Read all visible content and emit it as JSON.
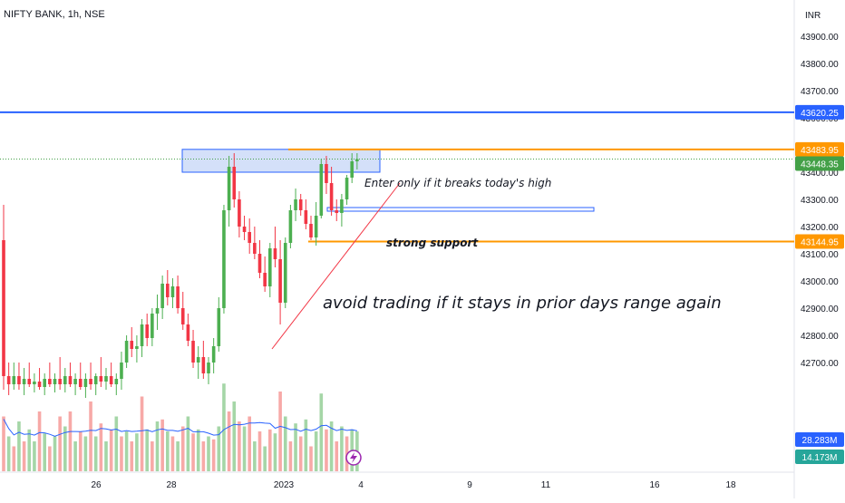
{
  "chart_data": {
    "type": "candlestick",
    "title": "NIFTY BANK, 1h, NSE",
    "currency_label": "INR",
    "y_axis_side": "right",
    "ylim": [
      42600,
      43980
    ],
    "y_ticks": [
      42700,
      42800,
      42900,
      43000,
      43100,
      43200,
      43300,
      43400,
      43500,
      43600,
      43700,
      43800,
      43900
    ],
    "y_tick_labels": [
      "42700.00",
      "42800.00",
      "42900.00",
      "43000.00",
      "43100.00",
      "43200.00",
      "43300.00",
      "43400.00",
      "43500.00",
      "43600.00",
      "43700.00",
      "43800.00",
      "43900.00"
    ],
    "x_tick_labels": [
      "26",
      "28",
      "2023",
      "4",
      "9",
      "11",
      "16",
      "18"
    ],
    "grid": false,
    "colors": {
      "up": "#4caf50",
      "down": "#f23645",
      "vol_up": "#a5d6a7",
      "vol_down": "#f7a9a7",
      "vol_ma": "#2962ff",
      "resistance": "#2962ff",
      "level": "#ff9800",
      "current": "#43a047",
      "trendline": "#f23645",
      "zone_fill": "#c5d6f7",
      "zone_border": "#2962ff"
    },
    "candles": [
      [
        43150,
        43280,
        42600,
        42650
      ],
      [
        42650,
        42700,
        42580,
        42620
      ],
      [
        42620,
        42700,
        42600,
        42650
      ],
      [
        42650,
        42700,
        42600,
        42620
      ],
      [
        42620,
        42680,
        42580,
        42640
      ],
      [
        42640,
        42700,
        42610,
        42620
      ],
      [
        42620,
        42660,
        42590,
        42630
      ],
      [
        42630,
        42680,
        42600,
        42610
      ],
      [
        42610,
        42660,
        42580,
        42640
      ],
      [
        42640,
        42700,
        42610,
        42620
      ],
      [
        42620,
        42660,
        42590,
        42640
      ],
      [
        42640,
        42720,
        42600,
        42620
      ],
      [
        42620,
        42680,
        42590,
        42650
      ],
      [
        42650,
        42700,
        42610,
        42620
      ],
      [
        42620,
        42660,
        42580,
        42640
      ],
      [
        42640,
        42700,
        42600,
        42610
      ],
      [
        42610,
        42660,
        42570,
        42640
      ],
      [
        42640,
        42700,
        42600,
        42620
      ],
      [
        42620,
        42660,
        42580,
        42650
      ],
      [
        42650,
        42720,
        42610,
        42630
      ],
      [
        42630,
        42680,
        42600,
        42650
      ],
      [
        42650,
        42700,
        42610,
        42620
      ],
      [
        42620,
        42660,
        42580,
        42640
      ],
      [
        42640,
        42740,
        42600,
        42700
      ],
      [
        42700,
        42800,
        42680,
        42780
      ],
      [
        42780,
        42830,
        42720,
        42750
      ],
      [
        42750,
        42800,
        42700,
        42760
      ],
      [
        42760,
        42860,
        42720,
        42840
      ],
      [
        42840,
        42880,
        42760,
        42790
      ],
      [
        42790,
        42900,
        42760,
        42880
      ],
      [
        42880,
        42950,
        42820,
        42900
      ],
      [
        42900,
        43020,
        42860,
        42990
      ],
      [
        42990,
        43040,
        42910,
        42940
      ],
      [
        42940,
        43010,
        42900,
        42980
      ],
      [
        42980,
        43020,
        42880,
        42900
      ],
      [
        42900,
        42960,
        42820,
        42840
      ],
      [
        42840,
        42880,
        42760,
        42780
      ],
      [
        42780,
        42820,
        42680,
        42700
      ],
      [
        42700,
        42760,
        42640,
        42720
      ],
      [
        42720,
        42780,
        42640,
        42660
      ],
      [
        42660,
        42720,
        42620,
        42700
      ],
      [
        42700,
        42790,
        42660,
        42760
      ],
      [
        42760,
        42940,
        42740,
        42900
      ],
      [
        42900,
        43280,
        42880,
        43260
      ],
      [
        43260,
        43460,
        43200,
        43420
      ],
      [
        43420,
        43470,
        43270,
        43300
      ],
      [
        43300,
        43330,
        43160,
        43200
      ],
      [
        43200,
        43240,
        43150,
        43180
      ],
      [
        43180,
        43230,
        43100,
        43140
      ],
      [
        43140,
        43200,
        43080,
        43100
      ],
      [
        43100,
        43150,
        43010,
        43030
      ],
      [
        43030,
        43090,
        42960,
        42980
      ],
      [
        42980,
        43140,
        42940,
        43120
      ],
      [
        43120,
        43200,
        43050,
        43080
      ],
      [
        43080,
        43150,
        42840,
        42920
      ],
      [
        42920,
        43160,
        42900,
        43140
      ],
      [
        43140,
        43280,
        43120,
        43260
      ],
      [
        43260,
        43340,
        43220,
        43300
      ],
      [
        43300,
        43320,
        43240,
        43260
      ],
      [
        43260,
        43300,
        43190,
        43210
      ],
      [
        43210,
        43240,
        43150,
        43160
      ],
      [
        43160,
        43290,
        43130,
        43240
      ],
      [
        43240,
        43450,
        43230,
        43430
      ],
      [
        43430,
        43460,
        43320,
        43360
      ],
      [
        43360,
        43420,
        43240,
        43260
      ],
      [
        43260,
        43300,
        43220,
        43250
      ],
      [
        43250,
        43320,
        43200,
        43300
      ],
      [
        43300,
        43390,
        43280,
        43380
      ],
      [
        43380,
        43470,
        43360,
        43440
      ],
      [
        43440,
        43470,
        43410,
        43448
      ]
    ],
    "volumes": [
      [
        0.55,
        0
      ],
      [
        0.35,
        1
      ],
      [
        0.25,
        0
      ],
      [
        0.5,
        1
      ],
      [
        0.3,
        0
      ],
      [
        0.42,
        1
      ],
      [
        0.3,
        1
      ],
      [
        0.6,
        0
      ],
      [
        0.38,
        1
      ],
      [
        0.25,
        0
      ],
      [
        0.35,
        1
      ],
      [
        0.55,
        0
      ],
      [
        0.45,
        1
      ],
      [
        0.6,
        0
      ],
      [
        0.3,
        1
      ],
      [
        0.4,
        0
      ],
      [
        0.35,
        1
      ],
      [
        0.7,
        0
      ],
      [
        0.35,
        1
      ],
      [
        0.48,
        0
      ],
      [
        0.3,
        1
      ],
      [
        0.42,
        0
      ],
      [
        0.55,
        1
      ],
      [
        0.35,
        0
      ],
      [
        0.4,
        1
      ],
      [
        0.3,
        0
      ],
      [
        0.38,
        1
      ],
      [
        0.75,
        0
      ],
      [
        0.42,
        1
      ],
      [
        0.3,
        0
      ],
      [
        0.5,
        1
      ],
      [
        0.52,
        0
      ],
      [
        0.4,
        1
      ],
      [
        0.35,
        0
      ],
      [
        0.3,
        1
      ],
      [
        0.45,
        0
      ],
      [
        0.55,
        1
      ],
      [
        0.38,
        0
      ],
      [
        0.42,
        1
      ],
      [
        0.3,
        0
      ],
      [
        0.35,
        1
      ],
      [
        0.32,
        0
      ],
      [
        0.45,
        1
      ],
      [
        0.88,
        1
      ],
      [
        0.6,
        0
      ],
      [
        0.7,
        1
      ],
      [
        0.5,
        0
      ],
      [
        0.45,
        1
      ],
      [
        0.55,
        0
      ],
      [
        0.3,
        1
      ],
      [
        0.4,
        0
      ],
      [
        0.25,
        1
      ],
      [
        0.42,
        0
      ],
      [
        0.38,
        1
      ],
      [
        0.8,
        0
      ],
      [
        0.55,
        1
      ],
      [
        0.3,
        0
      ],
      [
        0.48,
        1
      ],
      [
        0.35,
        0
      ],
      [
        0.52,
        1
      ],
      [
        0.25,
        0
      ],
      [
        0.4,
        1
      ],
      [
        0.78,
        1
      ],
      [
        0.42,
        0
      ],
      [
        0.5,
        1
      ],
      [
        0.3,
        0
      ],
      [
        0.45,
        1
      ],
      [
        0.35,
        0
      ],
      [
        0.42,
        1
      ],
      [
        0.4,
        1
      ]
    ],
    "levels": {
      "resistance": {
        "price": 43620.25,
        "label": "43620.25"
      },
      "upper": {
        "price": 43483.95,
        "label": "43483.95"
      },
      "current": {
        "price": 43448.35,
        "label": "43448.35"
      },
      "lower": {
        "price": 43144.95,
        "label": "43144.95"
      }
    },
    "volume_labels": {
      "vol_ma": "28.283M",
      "vol": "14.173M"
    },
    "annotations": {
      "breakout": "Enter only if it breaks today's high",
      "support": "strong support",
      "range": "avoid trading if it stays in prior days range again"
    }
  }
}
